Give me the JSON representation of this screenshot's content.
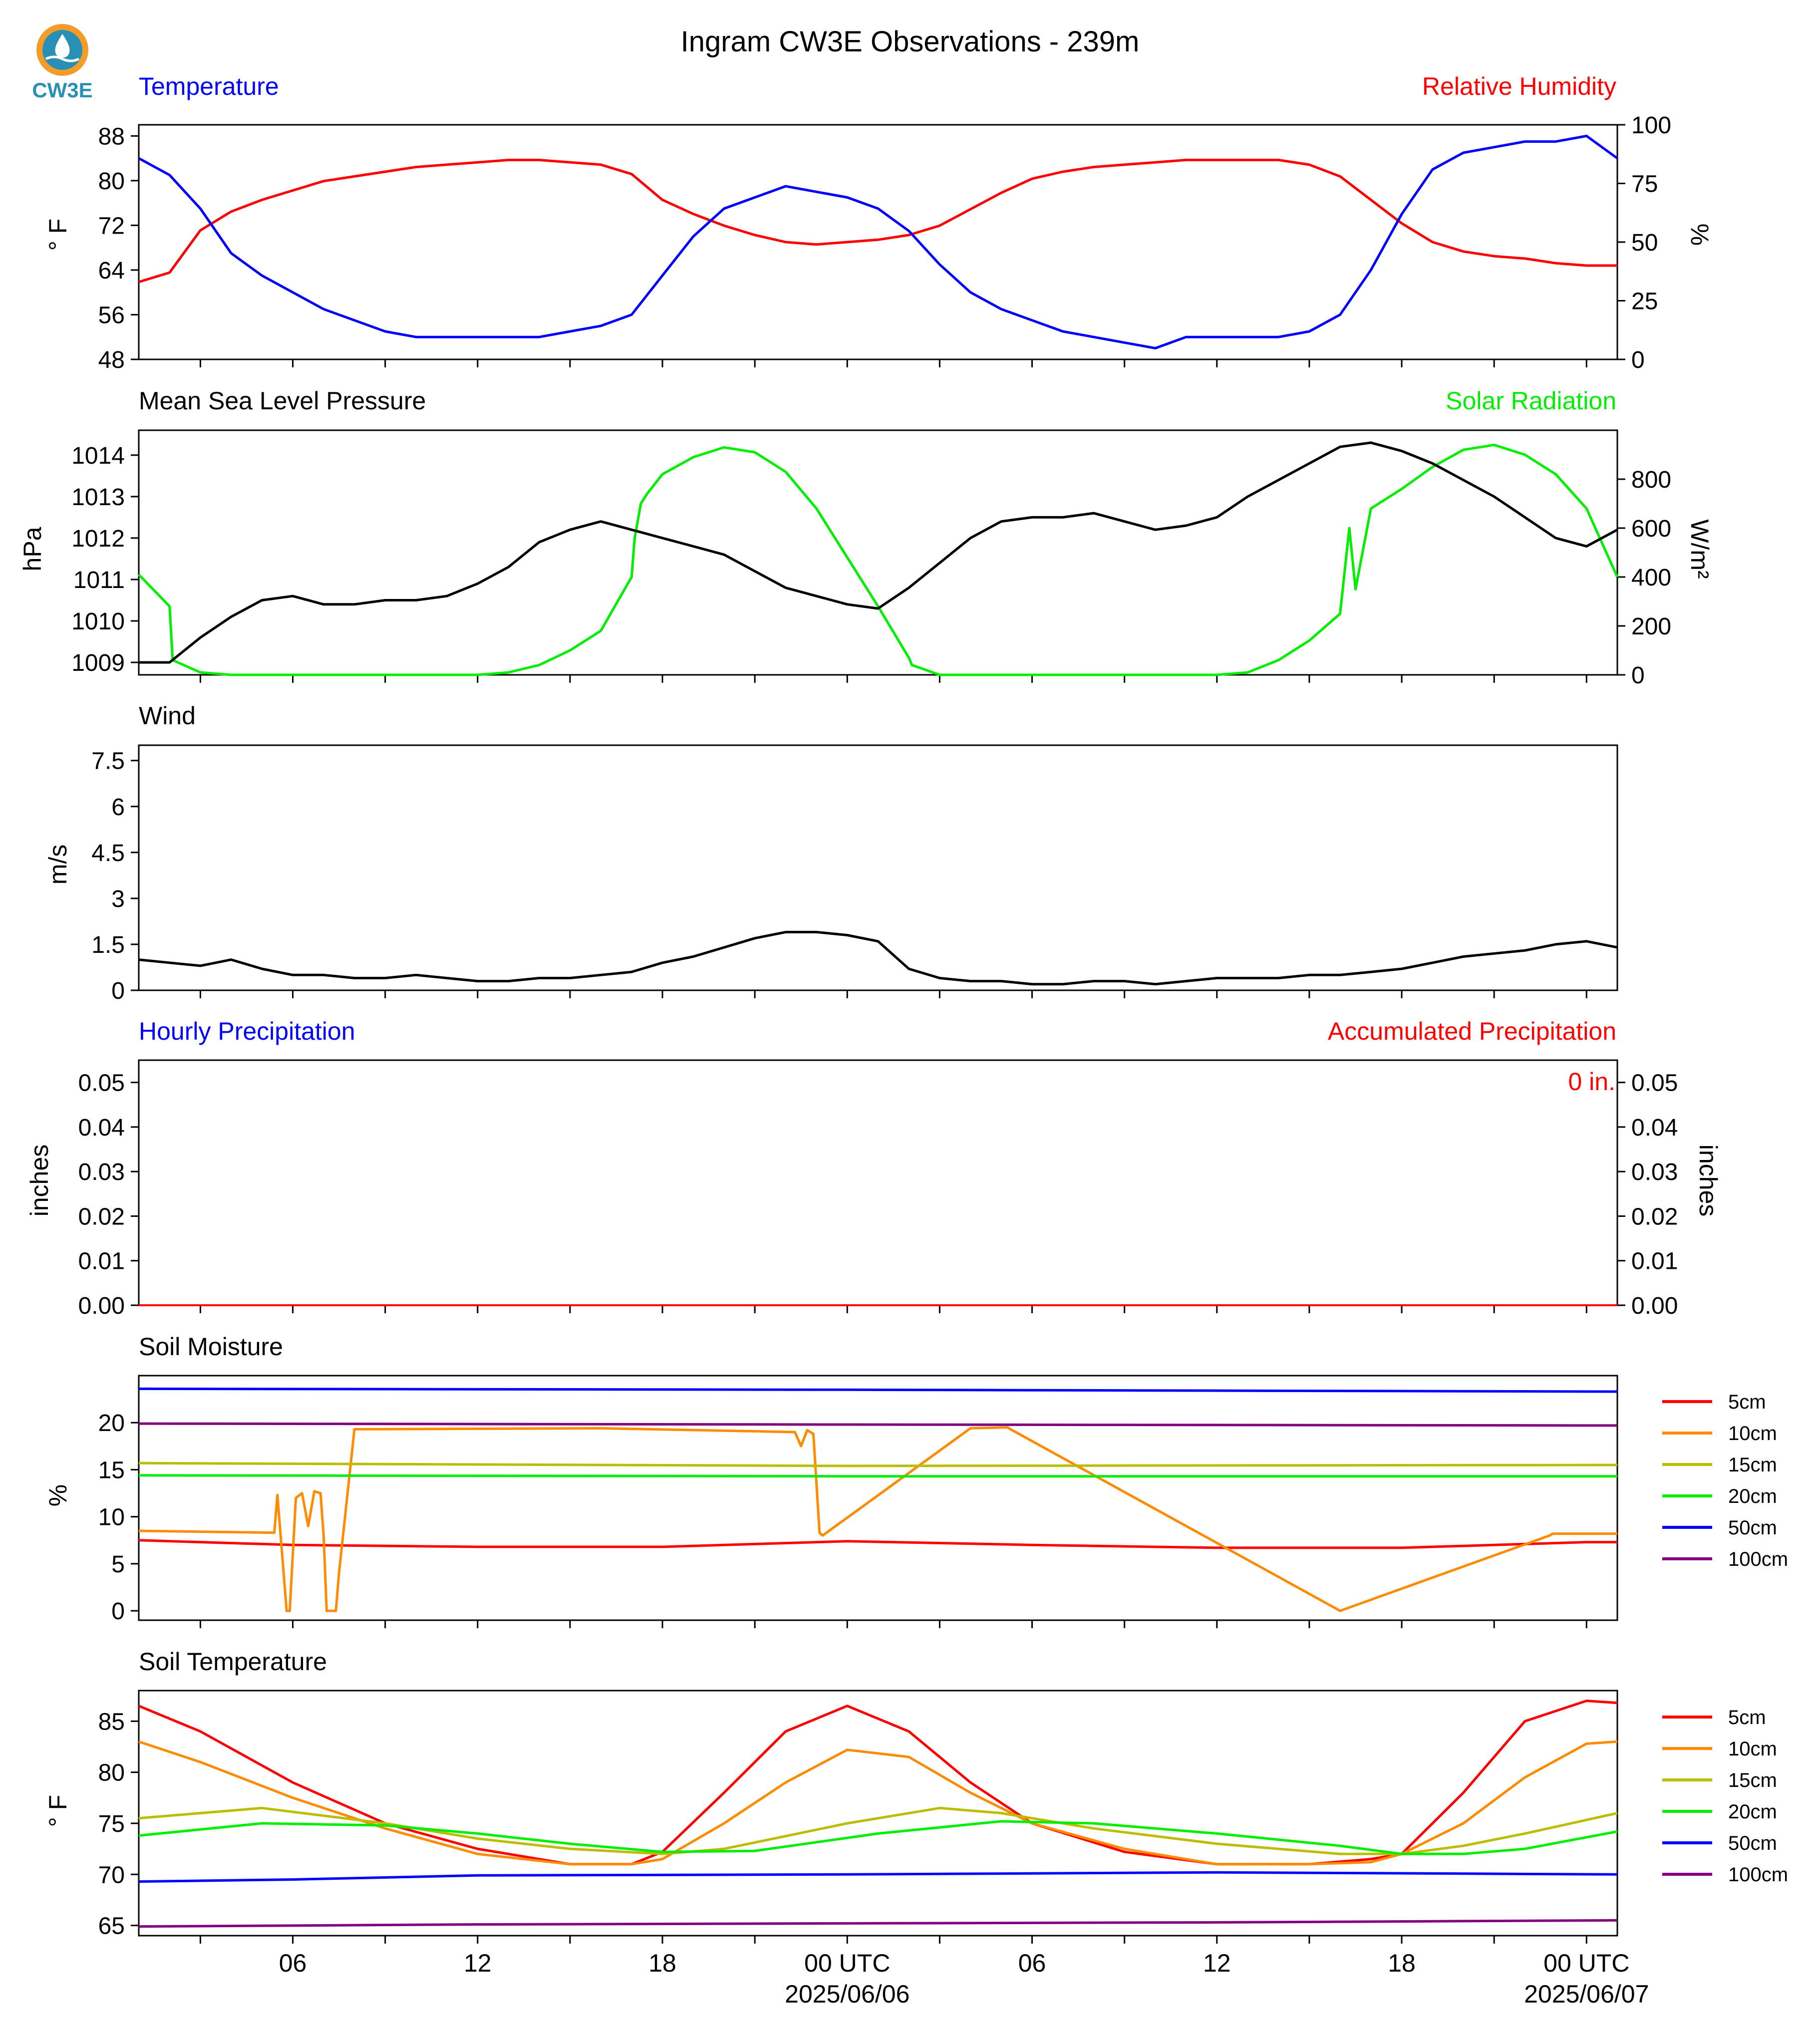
{
  "title": "Ingram CW3E Observations - 239m",
  "logo": {
    "text": "CW3E",
    "color": "#2a8fb5",
    "accent": "#f39c2a"
  },
  "x_axis": {
    "hour_ticks": [
      0,
      3,
      6,
      9,
      12,
      15,
      18,
      21,
      24,
      27,
      30,
      33,
      36,
      39,
      42,
      45,
      48
    ],
    "labels": [
      {
        "hour": 6,
        "text": "06"
      },
      {
        "hour": 12,
        "text": "12"
      },
      {
        "hour": 18,
        "text": "18"
      },
      {
        "hour": 24,
        "text": "00 UTC",
        "date": "2025/06/06"
      },
      {
        "hour": 30,
        "text": "06"
      },
      {
        "hour": 36,
        "text": "12"
      },
      {
        "hour": 42,
        "text": "18"
      },
      {
        "hour": 48,
        "text": "00 UTC",
        "date": "2025/06/07"
      }
    ]
  },
  "panels": {
    "temp_rh": {
      "left_title": "Temperature",
      "right_title": "Relative Humidity",
      "left_title_color": "#0000ff",
      "right_title_color": "#ff0000",
      "left_label": "° F",
      "right_label": "%"
    },
    "pressure_solar": {
      "left_title": "Mean Sea Level Pressure",
      "right_title": "Solar Radiation",
      "right_title_color": "#00ee00",
      "left_label": "hPa",
      "right_label": "W/m²"
    },
    "wind": {
      "left_title": "Wind",
      "left_label": "m/s"
    },
    "precip": {
      "left_title": "Hourly Precipitation",
      "right_title": "Accumulated Precipitation",
      "left_title_color": "#0000ff",
      "right_title_color": "#ff0000",
      "left_label": "inches",
      "right_label": "inches",
      "accum_annotation": "0 in."
    },
    "soil_moisture": {
      "left_title": "Soil Moisture",
      "left_label": "%"
    },
    "soil_temp": {
      "left_title": "Soil Temperature",
      "left_label": "° F"
    }
  },
  "legend_depths": [
    "5cm",
    "10cm",
    "15cm",
    "20cm",
    "50cm",
    "100cm"
  ],
  "depth_colors": [
    "#ff0000",
    "#ff8c00",
    "#bdbd00",
    "#00ee00",
    "#0000ff",
    "#800080"
  ],
  "chart_data": [
    {
      "id": "temperature",
      "type": "line",
      "x_unit": "hours from 2025/06/05 00 UTC",
      "xlim": [
        1,
        49
      ],
      "ylim": [
        48,
        90
      ],
      "yticks": [
        48,
        56,
        64,
        72,
        80,
        88
      ],
      "series": [
        {
          "name": "Temperature",
          "color": "#0000ff",
          "x": [
            1,
            2,
            3,
            4,
            5,
            6,
            7,
            8,
            9,
            10,
            11,
            12,
            13,
            14,
            15,
            16,
            17,
            18,
            19,
            20,
            21,
            22,
            23,
            24,
            25,
            26,
            27,
            28,
            29,
            30,
            31,
            32,
            33,
            34,
            35,
            36,
            37,
            38,
            39,
            40,
            41,
            42,
            43,
            44,
            45,
            46,
            47,
            48,
            49
          ],
          "y": [
            84,
            81,
            75,
            67,
            63,
            60,
            57,
            55,
            53,
            52,
            52,
            52,
            52,
            52,
            53,
            54,
            56,
            63,
            70,
            75,
            77,
            79,
            78,
            77,
            75,
            71,
            65,
            60,
            57,
            55,
            53,
            52,
            51,
            50,
            52,
            52,
            52,
            52,
            53,
            56,
            64,
            74,
            82,
            85,
            86,
            87,
            87,
            88,
            84
          ]
        }
      ]
    },
    {
      "id": "relative_humidity",
      "type": "line",
      "axis": "right",
      "ylim": [
        0,
        100
      ],
      "yticks": [
        0,
        25,
        50,
        75,
        100
      ],
      "series": [
        {
          "name": "Relative Humidity",
          "color": "#ff0000",
          "x": [
            1,
            2,
            3,
            4,
            5,
            6,
            7,
            8,
            9,
            10,
            11,
            12,
            13,
            14,
            15,
            16,
            17,
            18,
            19,
            20,
            21,
            22,
            23,
            24,
            25,
            26,
            27,
            28,
            29,
            30,
            31,
            32,
            33,
            34,
            35,
            36,
            37,
            38,
            39,
            40,
            41,
            42,
            43,
            44,
            45,
            46,
            47,
            48,
            49
          ],
          "y": [
            33,
            37,
            55,
            63,
            68,
            72,
            76,
            78,
            80,
            82,
            83,
            84,
            85,
            85,
            84,
            83,
            79,
            68,
            62,
            57,
            53,
            50,
            49,
            50,
            51,
            53,
            57,
            64,
            71,
            77,
            80,
            82,
            83,
            84,
            85,
            85,
            85,
            85,
            83,
            78,
            68,
            58,
            50,
            46,
            44,
            43,
            41,
            40,
            40
          ]
        }
      ]
    },
    {
      "id": "pressure",
      "type": "line",
      "ylim": [
        1008.7,
        1014.6
      ],
      "yticks": [
        1009,
        1010,
        1011,
        1012,
        1013,
        1014
      ],
      "series": [
        {
          "name": "Mean Sea Level Pressure",
          "color": "#000000",
          "x": [
            1,
            2,
            3,
            4,
            5,
            6,
            7,
            8,
            9,
            10,
            11,
            12,
            13,
            14,
            15,
            16,
            17,
            18,
            19,
            20,
            21,
            22,
            23,
            24,
            25,
            26,
            27,
            28,
            29,
            30,
            31,
            32,
            33,
            34,
            35,
            36,
            37,
            38,
            39,
            40,
            41,
            42,
            43,
            44,
            45,
            46,
            47,
            48,
            49
          ],
          "y": [
            1009,
            1009,
            1009.6,
            1010.1,
            1010.5,
            1010.6,
            1010.4,
            1010.4,
            1010.5,
            1010.5,
            1010.6,
            1010.9,
            1011.3,
            1011.9,
            1012.2,
            1012.4,
            1012.2,
            1012.0,
            1011.8,
            1011.6,
            1011.2,
            1010.8,
            1010.6,
            1010.4,
            1010.3,
            1010.8,
            1011.4,
            1012.0,
            1012.4,
            1012.5,
            1012.5,
            1012.6,
            1012.4,
            1012.2,
            1012.3,
            1012.5,
            1013.0,
            1013.4,
            1013.8,
            1014.2,
            1014.3,
            1014.1,
            1013.8,
            1013.4,
            1013.0,
            1012.5,
            1012.0,
            1011.8,
            1012.2
          ]
        }
      ]
    },
    {
      "id": "solar",
      "type": "line",
      "axis": "right",
      "ylim": [
        0,
        1000
      ],
      "yticks": [
        0,
        200,
        400,
        600,
        800
      ],
      "series": [
        {
          "name": "Solar Radiation",
          "color": "#00ee00",
          "x": [
            1,
            2,
            2.1,
            3,
            4,
            5,
            6,
            7,
            8,
            9,
            10,
            11,
            12,
            13,
            14,
            15,
            16,
            17,
            17.1,
            17.3,
            17.5,
            18,
            19,
            20,
            21,
            22,
            23,
            24,
            25,
            26,
            26.1,
            27,
            28,
            29,
            30,
            31,
            32,
            33,
            34,
            35,
            36,
            37,
            38,
            39,
            40,
            40.3,
            40.5,
            41,
            42,
            43,
            44,
            45,
            46,
            47,
            48,
            49
          ],
          "y": [
            410,
            280,
            60,
            10,
            0,
            0,
            0,
            0,
            0,
            0,
            0,
            0,
            0,
            10,
            40,
            100,
            180,
            400,
            560,
            700,
            740,
            820,
            890,
            930,
            910,
            830,
            680,
            480,
            280,
            70,
            40,
            0,
            0,
            0,
            0,
            0,
            0,
            0,
            0,
            0,
            0,
            10,
            60,
            140,
            250,
            600,
            350,
            680,
            760,
            850,
            920,
            940,
            900,
            820,
            680,
            400
          ]
        }
      ]
    },
    {
      "id": "wind",
      "type": "line",
      "ylim": [
        0,
        8
      ],
      "yticks": [
        0,
        1.5,
        3,
        4.5,
        6,
        7.5
      ],
      "series": [
        {
          "name": "Wind",
          "color": "#000000",
          "x": [
            1,
            2,
            3,
            4,
            5,
            6,
            7,
            8,
            9,
            10,
            11,
            12,
            13,
            14,
            15,
            16,
            17,
            18,
            19,
            20,
            21,
            22,
            23,
            24,
            25,
            26,
            27,
            28,
            29,
            30,
            31,
            32,
            33,
            34,
            35,
            36,
            37,
            38,
            39,
            40,
            41,
            42,
            43,
            44,
            45,
            46,
            47,
            48,
            49
          ],
          "y": [
            1.0,
            0.9,
            0.8,
            1.0,
            0.7,
            0.5,
            0.5,
            0.4,
            0.4,
            0.5,
            0.4,
            0.3,
            0.3,
            0.4,
            0.4,
            0.5,
            0.6,
            0.9,
            1.1,
            1.4,
            1.7,
            1.9,
            1.9,
            1.8,
            1.6,
            0.7,
            0.4,
            0.3,
            0.3,
            0.2,
            0.2,
            0.3,
            0.3,
            0.2,
            0.3,
            0.4,
            0.4,
            0.4,
            0.5,
            0.5,
            0.6,
            0.7,
            0.9,
            1.1,
            1.2,
            1.3,
            1.5,
            1.6,
            1.4
          ]
        }
      ]
    },
    {
      "id": "precip",
      "type": "line",
      "ylim": [
        0,
        0.055
      ],
      "yticks": [
        0,
        0.01,
        0.02,
        0.03,
        0.04,
        0.05
      ],
      "ytick_labels": [
        "0.00",
        "0.01",
        "0.02",
        "0.03",
        "0.04",
        "0.05"
      ],
      "series": [
        {
          "name": "Accumulated Precipitation",
          "color": "#ff0000",
          "x": [
            1,
            49
          ],
          "y": [
            0,
            0
          ]
        }
      ]
    },
    {
      "id": "soil_moisture",
      "type": "line",
      "ylim": [
        -1,
        25
      ],
      "yticks": [
        0,
        5,
        10,
        15,
        20
      ],
      "series": [
        {
          "name": "5cm",
          "color": "#ff0000",
          "x": [
            1,
            6,
            12,
            18,
            24,
            30,
            36,
            42,
            48,
            49
          ],
          "y": [
            7.5,
            7.0,
            6.8,
            6.8,
            7.4,
            7.0,
            6.7,
            6.7,
            7.3,
            7.3
          ]
        },
        {
          "name": "10cm",
          "color": "#ff8c00",
          "x": [
            1,
            5.4,
            5.5,
            5.8,
            5.9,
            6.1,
            6.3,
            6.5,
            6.7,
            6.9,
            7.0,
            7.1,
            7.2,
            7.4,
            7.5,
            8,
            16,
            22.3,
            22.5,
            22.7,
            22.9,
            23.1,
            23.2,
            28,
            29.2,
            29.3,
            40,
            46.8,
            46.9,
            47.0,
            47.1,
            49
          ],
          "y": [
            8.5,
            8.3,
            12.3,
            0,
            0,
            12.0,
            12.5,
            9,
            12.7,
            12.5,
            8,
            0,
            0,
            0,
            4,
            19.3,
            19.4,
            19.0,
            17.5,
            19.2,
            18.8,
            8.3,
            8.0,
            19.4,
            19.5,
            19.3,
            0,
            8.0,
            8.2,
            8.2,
            8.2,
            8.2
          ]
        },
        {
          "name": "15cm",
          "color": "#bdbd00",
          "x": [
            1,
            24,
            49
          ],
          "y": [
            15.7,
            15.4,
            15.5
          ]
        },
        {
          "name": "20cm",
          "color": "#00ee00",
          "x": [
            1,
            24,
            49
          ],
          "y": [
            14.4,
            14.3,
            14.3
          ]
        },
        {
          "name": "50cm",
          "color": "#0000ff",
          "x": [
            1,
            24,
            49
          ],
          "y": [
            23.6,
            23.5,
            23.3
          ]
        },
        {
          "name": "100cm",
          "color": "#800080",
          "x": [
            1,
            24,
            49
          ],
          "y": [
            19.9,
            19.8,
            19.7
          ]
        }
      ]
    },
    {
      "id": "soil_temperature",
      "type": "line",
      "ylim": [
        64,
        88
      ],
      "yticks": [
        65,
        70,
        75,
        80,
        85
      ],
      "series": [
        {
          "name": "5cm",
          "color": "#ff0000",
          "x": [
            1,
            3,
            6,
            9,
            12,
            15,
            17,
            18,
            20,
            22,
            24,
            26,
            28,
            30,
            33,
            36,
            39,
            41,
            42,
            44,
            46,
            48,
            49
          ],
          "y": [
            86.5,
            84,
            79,
            75,
            72.5,
            71,
            71,
            72.2,
            78,
            84,
            86.5,
            84,
            79,
            75,
            72.2,
            71,
            71,
            71.5,
            72,
            78,
            85,
            87,
            86.8
          ]
        },
        {
          "name": "10cm",
          "color": "#ff8c00",
          "x": [
            1,
            3,
            6,
            9,
            12,
            15,
            17,
            18,
            20,
            22,
            24,
            26,
            28,
            30,
            33,
            36,
            39,
            41,
            42,
            44,
            46,
            48,
            49
          ],
          "y": [
            83,
            81,
            77.5,
            74.5,
            72,
            71,
            71,
            71.5,
            75,
            79,
            82.2,
            81.5,
            78,
            75,
            72.5,
            71,
            71,
            71.2,
            72,
            75,
            79.5,
            82.8,
            83
          ]
        },
        {
          "name": "15cm",
          "color": "#bdbd00",
          "x": [
            1,
            5,
            9,
            12,
            15,
            18,
            20,
            24,
            27,
            29,
            32,
            36,
            40,
            42,
            44,
            46,
            49
          ],
          "y": [
            75.5,
            76.5,
            75,
            73.5,
            72.5,
            72,
            72.5,
            75,
            76.5,
            76,
            74.5,
            73,
            72,
            72,
            72.8,
            74,
            76
          ]
        },
        {
          "name": "20cm",
          "color": "#00ee00",
          "x": [
            1,
            5,
            9,
            12,
            15,
            18,
            21,
            25,
            29,
            32,
            36,
            40,
            42,
            44,
            46,
            49
          ],
          "y": [
            73.8,
            75,
            74.8,
            74,
            73,
            72.2,
            72.3,
            74,
            75.2,
            75,
            74,
            72.8,
            72,
            72,
            72.5,
            74.2
          ]
        },
        {
          "name": "50cm",
          "color": "#0000ff",
          "x": [
            1,
            6,
            12,
            24,
            36,
            49
          ],
          "y": [
            69.3,
            69.5,
            69.9,
            70,
            70.2,
            70
          ]
        },
        {
          "name": "100cm",
          "color": "#800080",
          "x": [
            1,
            12,
            24,
            36,
            49
          ],
          "y": [
            64.9,
            65.1,
            65.2,
            65.3,
            65.5
          ]
        }
      ]
    }
  ]
}
